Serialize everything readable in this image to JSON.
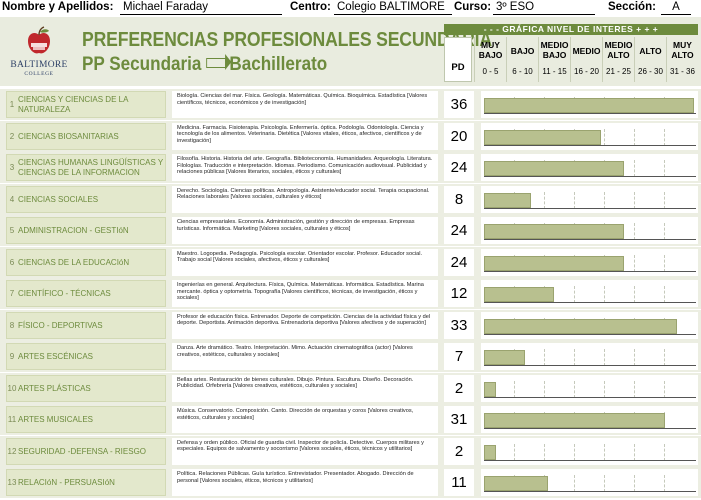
{
  "student": {
    "name_label": "Nombre y Apellidos:",
    "name_value": "Michael Faraday",
    "centre_label": "Centro:",
    "centre_value": "Colegio BALTIMORE",
    "course_label": "Curso:",
    "course_value": "3º ESO",
    "section_label": "Sección:",
    "section_value": "A"
  },
  "header": {
    "logo_text": "BALTIMORE",
    "logo_subtext": "COLLEGE",
    "title": "PREFERENCIAS PROFESIONALES SECUNDARIA",
    "subtitle_left": "PP Secundaria",
    "subtitle_right": "Bachillerato"
  },
  "legend": {
    "title": "- - - GRÁFICA NIVEL DE INTERES + + +",
    "pd_label": "PD",
    "levels": [
      {
        "name": "MUY BAJO",
        "range": "0 - 5"
      },
      {
        "name": "BAJO",
        "range": "6 - 10"
      },
      {
        "name": "MEDIO BAJO",
        "range": "11 - 15"
      },
      {
        "name": "MEDIO",
        "range": "16 - 20"
      },
      {
        "name": "MEDIO ALTO",
        "range": "21 - 25"
      },
      {
        "name": "ALTO",
        "range": "26 - 30"
      },
      {
        "name": "MUY ALTO",
        "range": "31 - 36"
      }
    ]
  },
  "scale_max": 36,
  "colors": {
    "accent": "#6d8b3d",
    "bar": "#b8c08f",
    "band": "#eceee2"
  },
  "rows": [
    {
      "num": "1",
      "category": "CIENCIAS Y CIENCIAS DE LA NATURALEZA",
      "description": "Biología. Ciencias del mar. Física. Geología. Matemáticas. Química. Bioquímica. Estadística [Valores científicos, técnicos, económicos y de investigación]",
      "score": "36"
    },
    {
      "num": "2",
      "category": "CIENCIAS BIOSANITARIAS",
      "description": "Medicina. Farmacia. Fisioterapia. Psicología. Enfermería. óptica. Podología. Odontología. Ciencia y tecnología de los alimentos. Veterinaria. Dietética [Valores vitales, éticos, afectivos, científicos y de investigación]",
      "score": "20"
    },
    {
      "num": "3",
      "category": "CIENCIAS HUMANAS LINGÜÍSTICAS Y CIENCIAS DE LA INFORMACION",
      "description": "Filosofía. Historia. Historia del arte. Geografía. Biblioteconomía. Humanidades. Arqueología. Literatura. Filologías. Traducción e interpretación. Idiomas. Periodismo. Comunicación audiovisual. Publicidad y relaciones públicas [Valores literarios, sociales, éticos y culturales]",
      "score": "24"
    },
    {
      "num": "4",
      "category": "CIENCIAS SOCIALES",
      "description": "Derecho. Sociología. Ciencias políticas. Antropología. Asistente/educador social. Terapia ocupacional. Relaciones laborales [Valores sociales, culturales y éticos]",
      "score": "8"
    },
    {
      "num": "5",
      "category": "ADMINISTRACION - GESTIóN",
      "description": "Ciencias empresariales. Economía. Administración, gestión y dirección de empresas. Empresas turísticas. Informática. Marketing [Valores sociales, culturales y éticos]",
      "score": "24"
    },
    {
      "num": "6",
      "category": "CIENCIAS DE LA EDUCACIóN",
      "description": "Maestro. Logopedia. Pedagogía. Psicología escolar. Orientador escolar. Profesor. Educador social. Trabajo social [Valores sociales, afectivos, éticos y culturales]",
      "score": "24"
    },
    {
      "num": "7",
      "category": "CIENTÍFICO - TÉCNICAS",
      "description": "Ingenierías en general. Arquitectura. Física, Química. Matemáticas. Informática. Estadística. Marina mercante. óptica y optometría. Topografía [Valores científicos, técnicas, de investigación, éticos y sociales]",
      "score": "12"
    },
    {
      "num": "8",
      "category": "FÍSICO - DEPORTIVAS",
      "description": "Profesor de educación física. Entrenador. Deporte de competición. Ciencias de la actividad física y del deporte. Deportista. Animación deportiva. Entrenadoría deportiva [Valores afectivos y de superación]",
      "score": "33"
    },
    {
      "num": "9",
      "category": "ARTES ESCÉNICAS",
      "description": "Danza. Arte dramático. Teatro. Interpretación. Mimo. Actuación cinematográfica (actor) [Valores creativos, estéticos, culturales y sociales]",
      "score": "7"
    },
    {
      "num": "10",
      "category": "ARTES PLÁSTICAS",
      "description": "Bellas artes. Restauración de bienes culturales. Dibujo. Pintura. Escultura. Diseño. Decoración. Publicidad. Orfebrería [Valores creativos, estéticos, culturales y sociales]",
      "score": "2"
    },
    {
      "num": "11",
      "category": "ARTES MUSICALES",
      "description": "Música. Conservatorio. Composición. Canto. Dirección de orquestas y coros [Valores creativos, estéticos, culturales y sociales]",
      "score": "31"
    },
    {
      "num": "12",
      "category": "SEGURIDAD -DEFENSA - RIESGO",
      "description": "Defensa y orden público. Oficial de guardia civil. Inspector de policía. Detective. Cuerpos militares y especiales. Equipos de salvamento y socorrismo [Valores sociales, éticos, técnicos y utilitarios]",
      "score": "2"
    },
    {
      "num": "13",
      "category": "RELACIóN - PERSUASIóN",
      "description": "Política. Relaciones Públicas. Guía turístico. Entrevistador. Presentador. Abogado. Dirección de personal [Valores sociales, éticos, técnicos y utilitarios]",
      "score": "11"
    }
  ]
}
